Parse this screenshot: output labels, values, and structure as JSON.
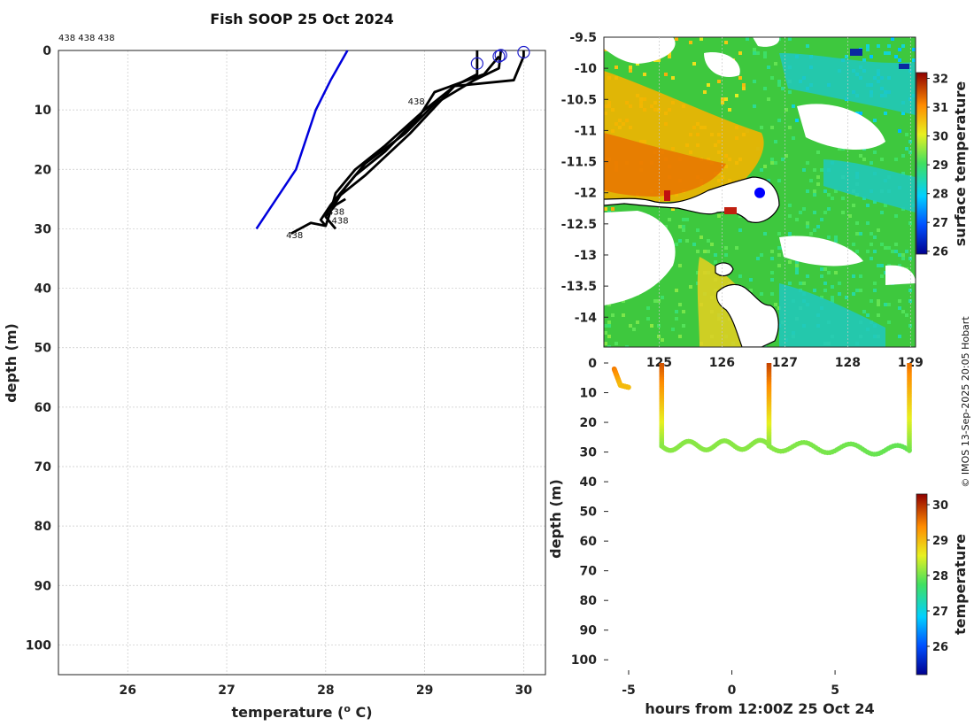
{
  "figure": {
    "copyright": "© IMOS 13-Sep-2025 20:05 Hobart"
  },
  "chart_data": [
    {
      "type": "line",
      "title": "Fish SOOP 25 Oct 2024",
      "annotation_top": "438 438 438",
      "xlabel": "temperature (",
      "xlabel_sup": "o",
      "xlabel_tail": " C)",
      "ylabel": "depth (m)",
      "xlim": [
        25.3,
        30.22
      ],
      "ylim": [
        0,
        105
      ],
      "xticks": [
        "26",
        "27",
        "28",
        "29",
        "30"
      ],
      "yticks": [
        "0",
        "10",
        "20",
        "30",
        "40",
        "50",
        "60",
        "70",
        "80",
        "90",
        "100"
      ],
      "grid": true,
      "reference_profile": {
        "color": "#0000dd",
        "temps": [
          27.3,
          27.7,
          27.9,
          28.05,
          28.22
        ],
        "depths": [
          30,
          20,
          10,
          5,
          0
        ]
      },
      "profiles": [
        {
          "color": "#000000",
          "marker_temp": 29.53,
          "marker_depth": 2.2,
          "temps": [
            29.53,
            29.53,
            29.3,
            29.0,
            28.6,
            28.3,
            28.1,
            28.05,
            28.1,
            28.15,
            28.2
          ],
          "depths": [
            0,
            4,
            6,
            10,
            16,
            20,
            24,
            27,
            26,
            25.5,
            25
          ]
        },
        {
          "color": "#000000",
          "marker_temp": 29.77,
          "marker_depth": 0.8,
          "temps": [
            29.77,
            29.75,
            29.5,
            29.1,
            28.8,
            28.4,
            28.2,
            28.05,
            28.0,
            27.85,
            27.65
          ],
          "depths": [
            0,
            3,
            5,
            9,
            14,
            19,
            23,
            27,
            29.5,
            29.0,
            30.8
          ]
        },
        {
          "color": "#000000",
          "marker_temp": 30.0,
          "marker_depth": 0.3,
          "temps": [
            30.0,
            30.0,
            29.9,
            29.3,
            28.85,
            28.4,
            28.1,
            28.0,
            28.1
          ],
          "depths": [
            0,
            1,
            5,
            6,
            14,
            21,
            25,
            28,
            30
          ]
        },
        {
          "color": "#000000",
          "marker_temp": 29.75,
          "marker_depth": 1.0,
          "temps": [
            29.75,
            29.6,
            29.1,
            28.95,
            28.6,
            28.3,
            28.05,
            27.95,
            28.0
          ],
          "depths": [
            1,
            4,
            7,
            11,
            17,
            21,
            26,
            28.5,
            29.5
          ]
        }
      ],
      "profile_labels": [
        {
          "text": "438",
          "temp": 28.83,
          "depth": 8.5
        },
        {
          "text": "438",
          "temp": 28.02,
          "depth": 27
        },
        {
          "text": "438",
          "temp": 28.06,
          "depth": 28.5
        },
        {
          "text": "438",
          "temp": 27.6,
          "depth": 31
        }
      ]
    },
    {
      "type": "heatmap",
      "xticks": [
        "125",
        "126",
        "127",
        "128",
        "129"
      ],
      "xlim": [
        124.12,
        129.08
      ],
      "yticks": [
        "-9.5",
        "-10",
        "-10.5",
        "-11",
        "-11.5",
        "-12",
        "-12.5",
        "-13",
        "-13.5",
        "-14"
      ],
      "ylim": [
        -14.48,
        -9.5
      ],
      "colorbar": {
        "label": "surface temperature",
        "ticks": [
          "32",
          "31",
          "30",
          "29",
          "28",
          "27",
          "26"
        ],
        "range": [
          25.9,
          32.2
        ]
      },
      "track_point": {
        "lon": 126.6,
        "lat": -12.0,
        "color": "#0000ff"
      }
    },
    {
      "type": "scatter",
      "xlabel": "hours from 12:00Z 25 Oct 24",
      "ylabel": "depth (m)",
      "xlim": [
        -6.2,
        8.9
      ],
      "ylim": [
        0,
        105
      ],
      "xticks": [
        "-5",
        "0",
        "5"
      ],
      "yticks": [
        "0",
        "10",
        "20",
        "30",
        "40",
        "50",
        "60",
        "70",
        "80",
        "90",
        "100"
      ],
      "colorbar": {
        "label": "temperature",
        "ticks": [
          "30",
          "29",
          "28",
          "27",
          "26"
        ],
        "range": [
          25.2,
          30.3
        ]
      },
      "segments": [
        {
          "x_start": -5.7,
          "x_end": -5.4,
          "depth_start": 2,
          "depth_end": 7.5,
          "temp_start": 29.5,
          "temp_end": 29.0
        },
        {
          "x_start": -5.4,
          "x_end": -5.0,
          "depth_start": 7.5,
          "depth_end": 8.2,
          "temp_start": 29.0,
          "temp_end": 29.0
        },
        {
          "x_start": -3.4,
          "x_end": -3.4,
          "depth_start": 0,
          "depth_end": 28,
          "temp_start": 29.8,
          "temp_end": 28.1
        },
        {
          "x_start": -3.4,
          "x_end": 1.8,
          "depth_start": 28,
          "depth_end": 27.5,
          "temp_start": 28.1,
          "temp_end": 28.1,
          "wave": 1.5
        },
        {
          "x_start": 1.8,
          "x_end": 1.8,
          "depth_start": 0,
          "depth_end": 28,
          "temp_start": 29.9,
          "temp_end": 28.1
        },
        {
          "x_start": 1.8,
          "x_end": 8.6,
          "depth_start": 28,
          "depth_end": 29.5,
          "temp_start": 28.1,
          "temp_end": 27.9,
          "wave": 1.6
        },
        {
          "x_start": 8.6,
          "x_end": 8.6,
          "depth_start": 0,
          "depth_end": 29.5,
          "temp_start": 29.6,
          "temp_end": 28.0
        }
      ]
    }
  ]
}
